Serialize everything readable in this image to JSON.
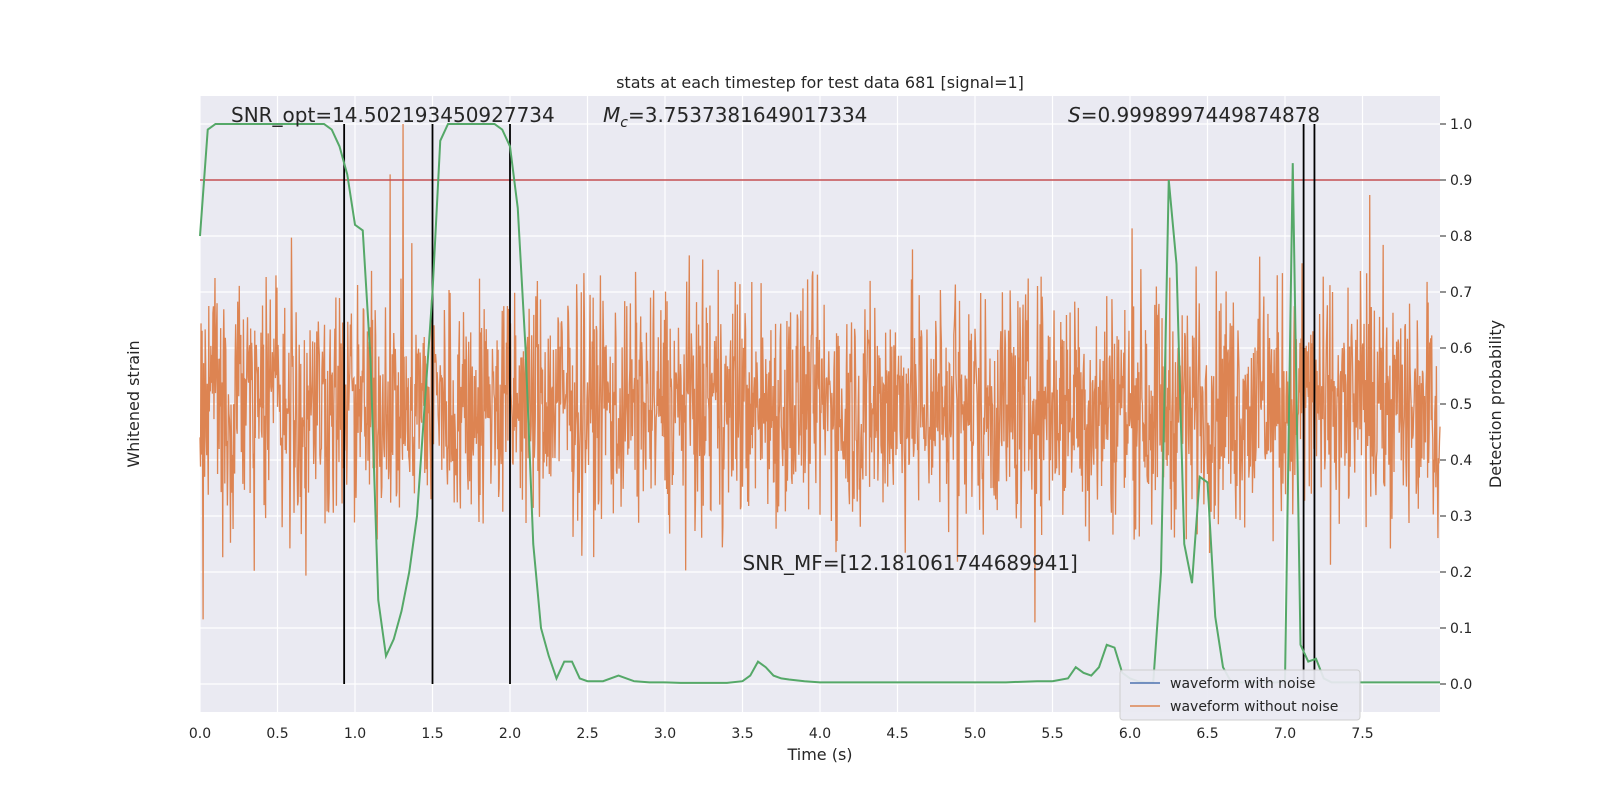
{
  "chart_data": {
    "type": "line",
    "title": "stats at each timestep for test data 681 [signal=1]",
    "xlabel": "Time (s)",
    "ylabel_left": "Whitened strain",
    "ylabel_right": "Detection probability",
    "xlim": [
      0,
      8
    ],
    "ylim_right": [
      -0.05,
      1.05
    ],
    "x_ticks": [
      0.0,
      0.5,
      1.0,
      1.5,
      2.0,
      2.5,
      3.0,
      3.5,
      4.0,
      4.5,
      5.0,
      5.5,
      6.0,
      6.5,
      7.0,
      7.5
    ],
    "x_tick_labels": [
      "0.0",
      "0.5",
      "1.0",
      "1.5",
      "2.0",
      "2.5",
      "3.0",
      "3.5",
      "4.0",
      "4.5",
      "5.0",
      "5.5",
      "6.0",
      "6.5",
      "7.0",
      "7.5"
    ],
    "y_right_ticks": [
      0.0,
      0.1,
      0.2,
      0.3,
      0.4,
      0.5,
      0.6,
      0.7,
      0.8,
      0.9,
      1.0
    ],
    "y_right_tick_labels": [
      "0.0",
      "0.1",
      "0.2",
      "0.3",
      "0.4",
      "0.5",
      "0.6",
      "0.7",
      "0.8",
      "0.9",
      "1.0"
    ],
    "threshold": 0.9,
    "vertical_lines": [
      0.93,
      1.5,
      2.0,
      7.12,
      7.19
    ],
    "grid": true,
    "legend_position": "lower-right",
    "annotations": [
      {
        "text": "SNR_opt=14.502193450927734",
        "x": 0.2,
        "y": 1.0
      },
      {
        "text": "=3.7537381649017334",
        "symbol": "M",
        "subscript": "c",
        "x": 2.6,
        "y": 1.0
      },
      {
        "text": "=0.9998997449874878",
        "symbol": "S",
        "x": 5.6,
        "y": 1.0
      },
      {
        "text": "SNR_MF=[12.181061744689941]",
        "x": 3.5,
        "y": 0.2
      }
    ],
    "series": [
      {
        "name": "waveform with noise",
        "color": "#4c72b0",
        "noise": {
          "center": 0.5,
          "typical_range": [
            0.25,
            0.75
          ],
          "spike_range": [
            0.0,
            1.0
          ]
        }
      },
      {
        "name": "waveform without noise",
        "color": "#dd8452"
      },
      {
        "name": "",
        "color": "#55a868",
        "x": [
          0.0,
          0.05,
          0.1,
          0.15,
          0.2,
          0.3,
          0.4,
          0.5,
          0.6,
          0.7,
          0.8,
          0.85,
          0.9,
          0.95,
          1.0,
          1.05,
          1.1,
          1.15,
          1.2,
          1.25,
          1.3,
          1.35,
          1.4,
          1.45,
          1.5,
          1.55,
          1.6,
          1.7,
          1.8,
          1.9,
          1.95,
          2.0,
          2.05,
          2.1,
          2.15,
          2.2,
          2.25,
          2.3,
          2.35,
          2.4,
          2.45,
          2.5,
          2.6,
          2.7,
          2.8,
          2.9,
          3.0,
          3.1,
          3.2,
          3.3,
          3.4,
          3.5,
          3.55,
          3.6,
          3.65,
          3.7,
          3.75,
          3.8,
          3.9,
          4.0,
          4.2,
          4.4,
          4.6,
          4.8,
          5.0,
          5.2,
          5.4,
          5.5,
          5.6,
          5.65,
          5.7,
          5.75,
          5.8,
          5.85,
          5.9,
          5.95,
          6.0,
          6.05,
          6.1,
          6.15,
          6.2,
          6.25,
          6.3,
          6.35,
          6.4,
          6.45,
          6.5,
          6.55,
          6.6,
          6.65,
          6.7,
          6.75,
          6.8,
          6.85,
          6.9,
          6.95,
          7.0,
          7.05,
          7.1,
          7.15,
          7.2,
          7.25,
          7.3,
          7.35,
          7.4,
          7.45,
          7.5,
          7.55,
          7.6,
          7.7,
          7.8,
          7.9,
          8.0
        ],
        "values": [
          0.8,
          0.99,
          1.0,
          1.0,
          1.0,
          1.0,
          1.0,
          1.0,
          1.0,
          1.0,
          1.0,
          0.99,
          0.96,
          0.91,
          0.82,
          0.81,
          0.58,
          0.15,
          0.05,
          0.08,
          0.13,
          0.2,
          0.3,
          0.5,
          0.7,
          0.97,
          1.0,
          1.0,
          1.0,
          1.0,
          0.99,
          0.96,
          0.85,
          0.6,
          0.25,
          0.1,
          0.05,
          0.01,
          0.04,
          0.04,
          0.01,
          0.005,
          0.005,
          0.015,
          0.005,
          0.003,
          0.003,
          0.002,
          0.002,
          0.002,
          0.002,
          0.005,
          0.015,
          0.04,
          0.03,
          0.015,
          0.01,
          0.008,
          0.005,
          0.003,
          0.003,
          0.003,
          0.003,
          0.003,
          0.003,
          0.003,
          0.005,
          0.005,
          0.01,
          0.03,
          0.02,
          0.015,
          0.03,
          0.07,
          0.065,
          0.02,
          0.01,
          0.005,
          0.003,
          0.003,
          0.2,
          0.9,
          0.75,
          0.25,
          0.18,
          0.37,
          0.36,
          0.12,
          0.03,
          0.005,
          0.003,
          0.003,
          0.003,
          0.003,
          0.003,
          0.003,
          0.005,
          0.93,
          0.07,
          0.04,
          0.045,
          0.01,
          0.003,
          0.003,
          0.003,
          0.003,
          0.003,
          0.003,
          0.003,
          0.003,
          0.003,
          0.003,
          0.003
        ]
      }
    ]
  }
}
